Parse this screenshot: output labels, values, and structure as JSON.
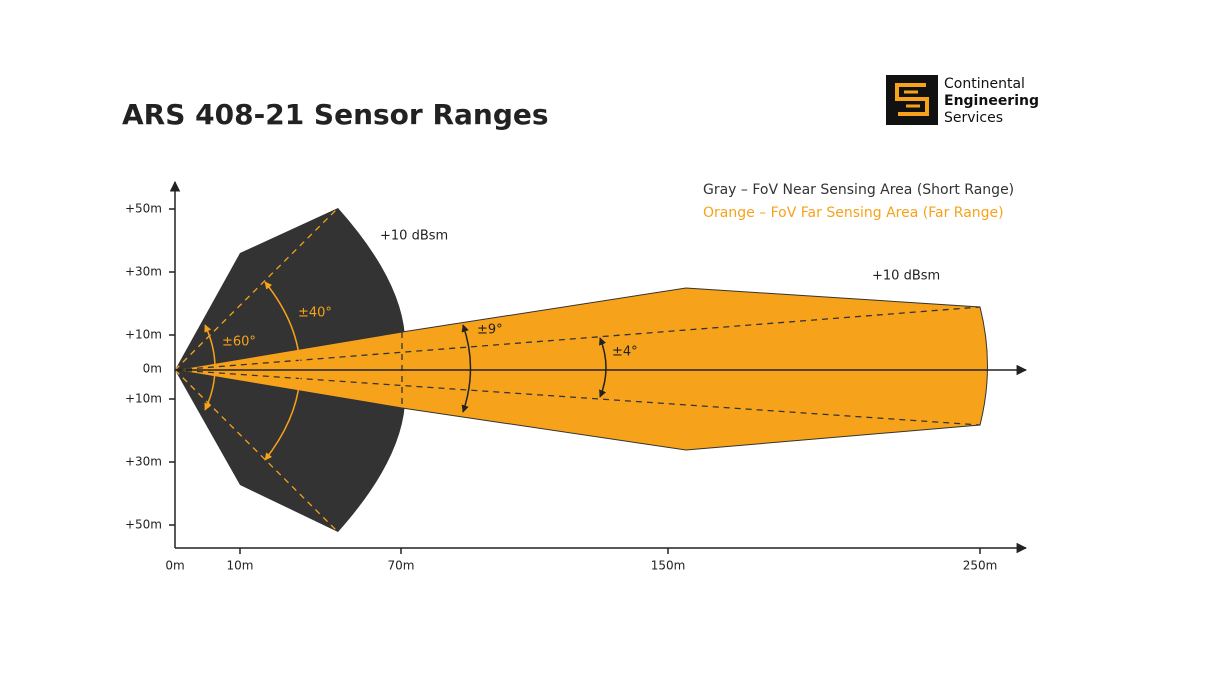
{
  "title": "ARS 408-21 Sensor Ranges",
  "logo": {
    "lines": [
      "Continental",
      "Engineering",
      "Services"
    ]
  },
  "legend": [
    "Gray – FoV Near Sensing Area (Short Range)",
    "Orange – FoV Far Sensing Area (Far Range)"
  ],
  "y_axis_labels": [
    "+50m",
    "+30m",
    "+10m",
    "0m",
    "+10m",
    "+30m",
    "+50m"
  ],
  "x_axis_labels": [
    "0m",
    "10m",
    "70m",
    "150m",
    "250m"
  ],
  "annotations": {
    "angle_60": "±60°",
    "angle_40": "±40°",
    "angle_9": "±9°",
    "angle_4": "±4°",
    "rcs_near": "+10 dBsm",
    "rcs_far": "+10 dBsm"
  }
}
